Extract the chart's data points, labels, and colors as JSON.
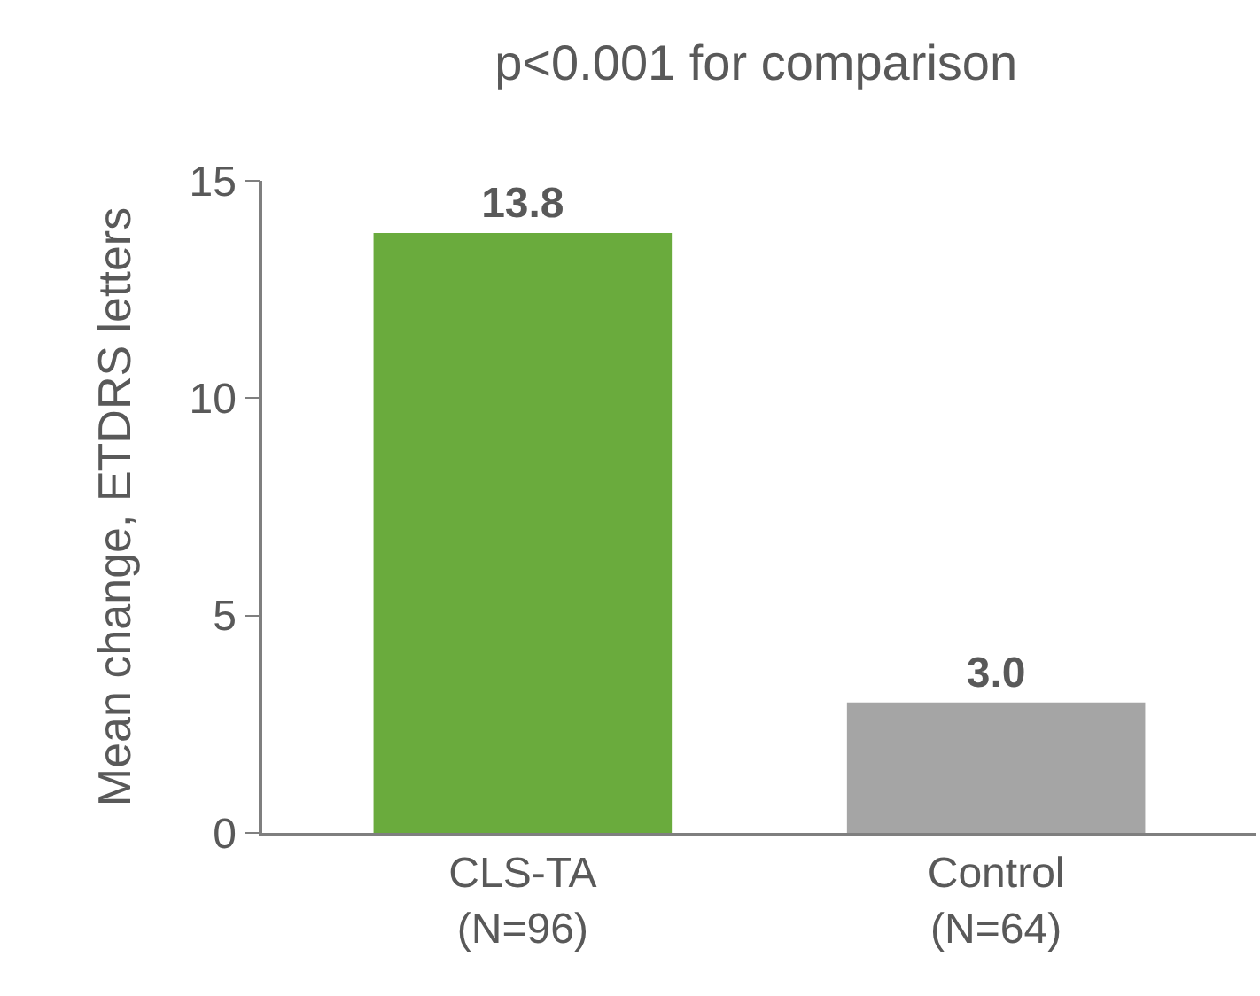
{
  "chart_data": {
    "type": "bar",
    "title": "p<0.001 for comparison",
    "ylabel": "Mean change, ETDRS letters",
    "categories": [
      "CLS-TA\n(N=96)",
      "Control\n(N=64)"
    ],
    "values": [
      13.8,
      3.0
    ],
    "colors": [
      "#6aab3d",
      "#a5a5a5"
    ],
    "value_labels": [
      "13.8",
      "3.0"
    ],
    "ylim": [
      0,
      15
    ],
    "yticks": [
      0,
      5,
      10,
      15
    ],
    "grid": false
  }
}
